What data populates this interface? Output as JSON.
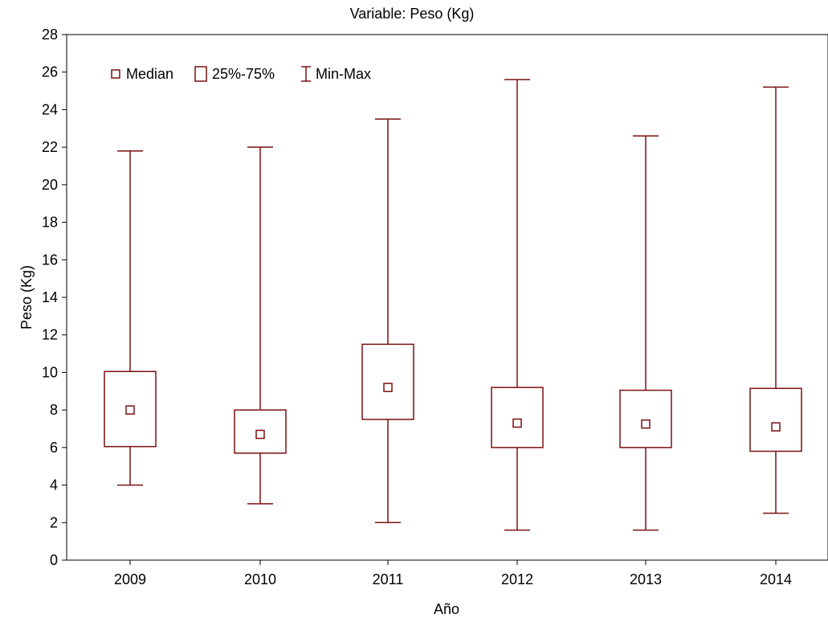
{
  "chart_data": {
    "type": "boxplot",
    "title": "Variable: Peso (Kg)",
    "xlabel": "Año",
    "ylabel": "Peso (Kg)",
    "ylim": [
      0,
      28
    ],
    "yticks": [
      0,
      2,
      4,
      6,
      8,
      10,
      12,
      14,
      16,
      18,
      20,
      22,
      24,
      26,
      28
    ],
    "grid": false,
    "legend_position": "top-left",
    "color": "#7B1010",
    "legend": [
      {
        "symbol": "median",
        "label": "Median"
      },
      {
        "symbol": "box",
        "label": "25%-75%"
      },
      {
        "symbol": "whisker",
        "label": "Min-Max"
      }
    ],
    "categories": [
      "2009",
      "2010",
      "2011",
      "2012",
      "2013",
      "2014"
    ],
    "series": [
      {
        "category": "2009",
        "min": 4.0,
        "q1": 6.05,
        "median": 8.0,
        "q3": 10.05,
        "max": 21.8
      },
      {
        "category": "2010",
        "min": 3.0,
        "q1": 5.7,
        "median": 6.7,
        "q3": 8.0,
        "max": 22.0
      },
      {
        "category": "2011",
        "min": 2.0,
        "q1": 7.5,
        "median": 9.2,
        "q3": 11.5,
        "max": 23.5
      },
      {
        "category": "2012",
        "min": 1.6,
        "q1": 6.0,
        "median": 7.3,
        "q3": 9.2,
        "max": 25.6
      },
      {
        "category": "2013",
        "min": 1.6,
        "q1": 6.0,
        "median": 7.25,
        "q3": 9.05,
        "max": 22.6
      },
      {
        "category": "2014",
        "min": 2.5,
        "q1": 5.8,
        "median": 7.1,
        "q3": 9.15,
        "max": 25.2
      }
    ]
  }
}
